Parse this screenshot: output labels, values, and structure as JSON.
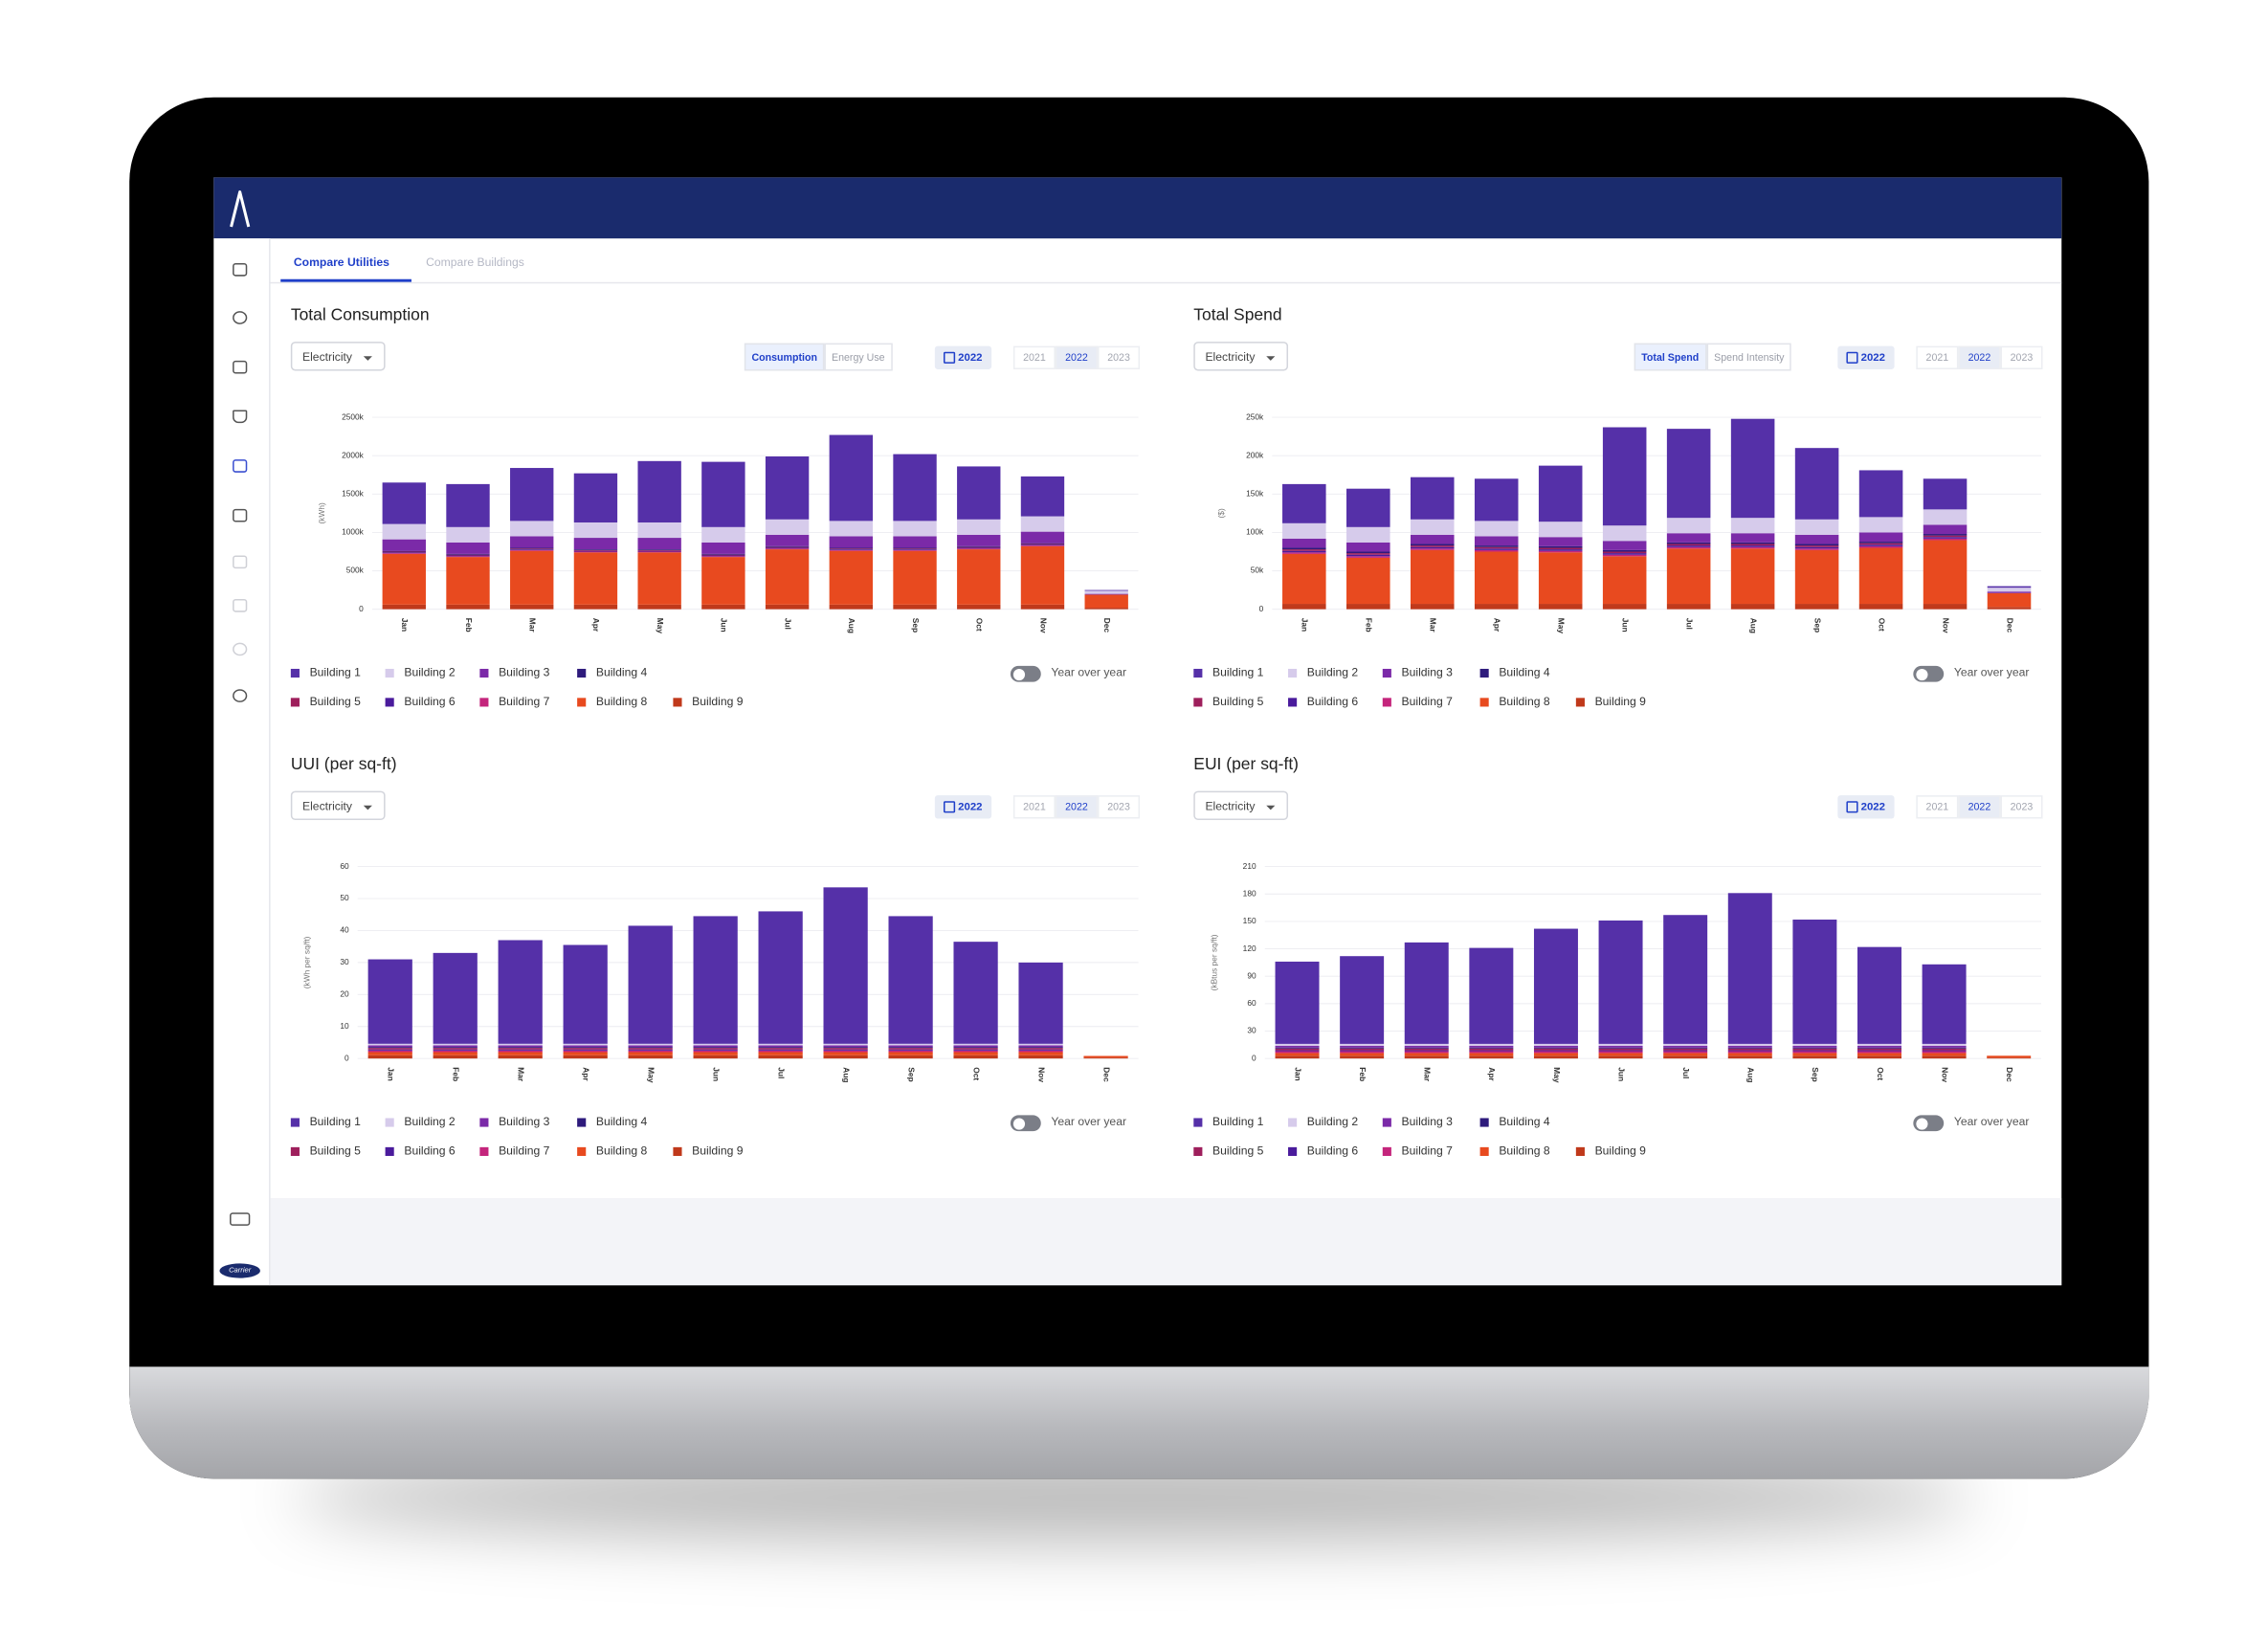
{
  "app": {
    "tabs": [
      "Compare Utilities",
      "Compare Buildings"
    ],
    "brand": "Carrier"
  },
  "panels": [
    {
      "dropdown": "Electricity",
      "toggle": [
        "Consumption",
        "Energy Use"
      ],
      "date_badge": "2022",
      "years": [
        "2021",
        "2022",
        "2023"
      ],
      "yoy": "Year over year"
    },
    {
      "dropdown": "Electricity",
      "toggle": [
        "Total Spend",
        "Spend Intensity"
      ],
      "date_badge": "2022",
      "years": [
        "2021",
        "2022",
        "2023"
      ],
      "yoy": "Year over year"
    },
    {
      "dropdown": "Electricity",
      "date_badge": "2022",
      "years": [
        "2021",
        "2022",
        "2023"
      ],
      "yoy": "Year over year"
    },
    {
      "dropdown": "Electricity",
      "date_badge": "2022",
      "years": [
        "2021",
        "2022",
        "2023"
      ],
      "yoy": "Year over year"
    }
  ],
  "chart_data": [
    {
      "type": "bar",
      "stacked": true,
      "title": "Total Consumption",
      "y_label": "(kWh)",
      "grid": true,
      "categories": [
        "Jan",
        "Feb",
        "Mar",
        "Apr",
        "May",
        "Jun",
        "Jul",
        "Aug",
        "Sep",
        "Oct",
        "Nov",
        "Dec"
      ],
      "ylim": [
        0,
        2500000
      ],
      "yticks": [
        0,
        {
          "value": 500000,
          "label": "500k"
        },
        {
          "value": 1000000,
          "label": "1000k"
        },
        {
          "value": 1500000,
          "label": "1500k"
        },
        {
          "value": 2000000,
          "label": "2000k"
        },
        {
          "value": 2500000,
          "label": "2500k"
        }
      ],
      "series": [
        {
          "name": "Building 1",
          "color": "#5530a8",
          "values": [
            540000,
            560000,
            690000,
            640000,
            800000,
            850000,
            820000,
            1120000,
            870000,
            690000,
            520000,
            10000
          ]
        },
        {
          "name": "Building 2",
          "color": "#d6cbeb",
          "values": [
            200000,
            200000,
            200000,
            200000,
            200000,
            200000,
            200000,
            200000,
            200000,
            200000,
            200000,
            40000
          ]
        },
        {
          "name": "Building 3",
          "color": "#7b2aa8",
          "values": [
            150000,
            150000,
            150000,
            150000,
            150000,
            150000,
            150000,
            150000,
            150000,
            150000,
            150000,
            10000
          ]
        },
        {
          "name": "Building 4",
          "color": "#2e1b7c",
          "values": [
            10000,
            10000,
            10000,
            10000,
            10000,
            10000,
            10000,
            10000,
            10000,
            10000,
            10000,
            0
          ]
        },
        {
          "name": "Building 5",
          "color": "#9e1f5c",
          "values": [
            10000,
            10000,
            10000,
            10000,
            10000,
            10000,
            10000,
            10000,
            10000,
            10000,
            10000,
            0
          ]
        },
        {
          "name": "Building 6",
          "color": "#4a1b9c",
          "values": [
            10000,
            10000,
            10000,
            10000,
            10000,
            10000,
            10000,
            10000,
            10000,
            10000,
            10000,
            0
          ]
        },
        {
          "name": "Building 7",
          "color": "#c4257c",
          "values": [
            10000,
            10000,
            10000,
            10000,
            10000,
            10000,
            10000,
            10000,
            10000,
            10000,
            10000,
            0
          ]
        },
        {
          "name": "Building 8",
          "color": "#e84a1f",
          "values": [
            660000,
            620000,
            700000,
            680000,
            680000,
            620000,
            720000,
            700000,
            700000,
            720000,
            760000,
            170000
          ]
        },
        {
          "name": "Building 9",
          "color": "#c0391b",
          "values": [
            60000,
            60000,
            60000,
            60000,
            60000,
            60000,
            60000,
            60000,
            60000,
            60000,
            60000,
            20000
          ]
        }
      ]
    },
    {
      "type": "bar",
      "stacked": true,
      "title": "Total Spend",
      "y_label": "($)",
      "grid": true,
      "categories": [
        "Jan",
        "Feb",
        "Mar",
        "Apr",
        "May",
        "Jun",
        "Jul",
        "Aug",
        "Sep",
        "Oct",
        "Nov",
        "Dec"
      ],
      "ylim": [
        0,
        250000
      ],
      "yticks": [
        0,
        {
          "value": 50000,
          "label": "50k"
        },
        {
          "value": 100000,
          "label": "100k"
        },
        {
          "value": 150000,
          "label": "150k"
        },
        {
          "value": 200000,
          "label": "200k"
        },
        {
          "value": 250000,
          "label": "250k"
        }
      ],
      "series": [
        {
          "name": "Building 1",
          "color": "#5530a8",
          "values": [
            51000,
            50000,
            55000,
            55000,
            73000,
            128000,
            116000,
            129000,
            93000,
            61000,
            40000,
            2000
          ]
        },
        {
          "name": "Building 2",
          "color": "#d6cbeb",
          "values": [
            20000,
            20000,
            20000,
            20000,
            20000,
            20000,
            20000,
            20000,
            20000,
            20000,
            20000,
            5000
          ]
        },
        {
          "name": "Building 3",
          "color": "#7b2aa8",
          "values": [
            12000,
            12000,
            12000,
            12000,
            12000,
            12000,
            12000,
            12000,
            12000,
            12000,
            12000,
            2000
          ]
        },
        {
          "name": "Building 4",
          "color": "#2e1b7c",
          "values": [
            2000,
            2000,
            2000,
            2000,
            2000,
            2000,
            2000,
            2000,
            2000,
            2000,
            2000,
            0
          ]
        },
        {
          "name": "Building 5",
          "color": "#9e1f5c",
          "values": [
            2000,
            2000,
            2000,
            2000,
            2000,
            2000,
            2000,
            2000,
            2000,
            2000,
            2000,
            0
          ]
        },
        {
          "name": "Building 6",
          "color": "#4a1b9c",
          "values": [
            2000,
            2000,
            2000,
            2000,
            2000,
            2000,
            2000,
            2000,
            2000,
            2000,
            2000,
            0
          ]
        },
        {
          "name": "Building 7",
          "color": "#c4257c",
          "values": [
            2000,
            2000,
            2000,
            2000,
            2000,
            2000,
            2000,
            2000,
            2000,
            2000,
            2000,
            0
          ]
        },
        {
          "name": "Building 8",
          "color": "#e84a1f",
          "values": [
            65000,
            60000,
            70000,
            68000,
            67000,
            62000,
            72000,
            72000,
            70000,
            73000,
            83000,
            18000
          ]
        },
        {
          "name": "Building 9",
          "color": "#c0391b",
          "values": [
            7000,
            7000,
            7000,
            7000,
            7000,
            7000,
            7000,
            7000,
            7000,
            7000,
            7000,
            3000
          ]
        }
      ]
    },
    {
      "type": "bar",
      "stacked": true,
      "title": "UUI (per sq-ft)",
      "y_label": "(kWh per sq/ft)",
      "grid": true,
      "categories": [
        "Jan",
        "Feb",
        "Mar",
        "Apr",
        "May",
        "Jun",
        "Jul",
        "Aug",
        "Sep",
        "Oct",
        "Nov",
        "Dec"
      ],
      "ylim": [
        0,
        60
      ],
      "yticks": [
        0,
        10,
        20,
        30,
        40,
        50,
        60
      ],
      "series": [
        {
          "name": "Building 1",
          "color": "#5530a8",
          "values": [
            26.4,
            28.4,
            32.4,
            30.9,
            36.9,
            39.9,
            41.4,
            48.9,
            39.9,
            31.9,
            25.4,
            0
          ]
        },
        {
          "name": "Building 2",
          "color": "#d6cbeb",
          "values": [
            0.5,
            0.5,
            0.5,
            0.5,
            0.5,
            0.5,
            0.5,
            0.5,
            0.5,
            0.5,
            0.5,
            0
          ]
        },
        {
          "name": "Building 3",
          "color": "#7b2aa8",
          "values": [
            0.5,
            0.5,
            0.5,
            0.5,
            0.5,
            0.5,
            0.5,
            0.5,
            0.5,
            0.5,
            0.5,
            0
          ]
        },
        {
          "name": "Building 4",
          "color": "#2e1b7c",
          "values": [
            0.3,
            0.3,
            0.3,
            0.3,
            0.3,
            0.3,
            0.3,
            0.3,
            0.3,
            0.3,
            0.3,
            0
          ]
        },
        {
          "name": "Building 5",
          "color": "#9e1f5c",
          "values": [
            0.5,
            0.5,
            0.5,
            0.5,
            0.5,
            0.5,
            0.5,
            0.5,
            0.5,
            0.5,
            0.5,
            0
          ]
        },
        {
          "name": "Building 6",
          "color": "#4a1b9c",
          "values": [
            0.3,
            0.3,
            0.3,
            0.3,
            0.3,
            0.3,
            0.3,
            0.3,
            0.3,
            0.3,
            0.3,
            0
          ]
        },
        {
          "name": "Building 7",
          "color": "#c4257c",
          "values": [
            0.5,
            0.5,
            0.5,
            0.5,
            0.5,
            0.5,
            0.5,
            0.5,
            0.5,
            0.5,
            0.5,
            0
          ]
        },
        {
          "name": "Building 8",
          "color": "#e84a1f",
          "values": [
            1,
            1,
            1,
            1,
            1,
            1,
            1,
            1,
            1,
            1,
            1,
            0.5
          ]
        },
        {
          "name": "Building 9",
          "color": "#c0391b",
          "values": [
            1,
            1,
            1,
            1,
            1,
            1,
            1,
            1,
            1,
            1,
            1,
            0.3
          ]
        }
      ]
    },
    {
      "type": "bar",
      "stacked": true,
      "title": "EUI (per sq-ft)",
      "y_label": "(kBtus per sq/ft)",
      "grid": true,
      "categories": [
        "Jan",
        "Feb",
        "Mar",
        "Apr",
        "May",
        "Jun",
        "Jul",
        "Aug",
        "Sep",
        "Oct",
        "Nov",
        "Dec"
      ],
      "ylim": [
        0,
        210
      ],
      "yticks": [
        0,
        30,
        60,
        90,
        120,
        150,
        180,
        210
      ],
      "series": [
        {
          "name": "Building 1",
          "color": "#5530a8",
          "values": [
            90,
            96,
            111,
            105,
            126,
            135,
            141,
            165,
            136,
            106,
            87,
            0
          ]
        },
        {
          "name": "Building 2",
          "color": "#d6cbeb",
          "values": [
            2,
            2,
            2,
            2,
            2,
            2,
            2,
            2,
            2,
            2,
            2,
            0
          ]
        },
        {
          "name": "Building 3",
          "color": "#7b2aa8",
          "values": [
            2,
            2,
            2,
            2,
            2,
            2,
            2,
            2,
            2,
            2,
            2,
            0
          ]
        },
        {
          "name": "Building 4",
          "color": "#2e1b7c",
          "values": [
            1,
            1,
            1,
            1,
            1,
            1,
            1,
            1,
            1,
            1,
            1,
            0
          ]
        },
        {
          "name": "Building 5",
          "color": "#9e1f5c",
          "values": [
            2,
            2,
            2,
            2,
            2,
            2,
            2,
            2,
            2,
            2,
            2,
            0
          ]
        },
        {
          "name": "Building 6",
          "color": "#4a1b9c",
          "values": [
            1,
            1,
            1,
            1,
            1,
            1,
            1,
            1,
            1,
            1,
            1,
            0
          ]
        },
        {
          "name": "Building 7",
          "color": "#c4257c",
          "values": [
            2,
            2,
            2,
            2,
            2,
            2,
            2,
            2,
            2,
            2,
            2,
            0
          ]
        },
        {
          "name": "Building 8",
          "color": "#e84a1f",
          "values": [
            3,
            3,
            3,
            3,
            3,
            3,
            3,
            3,
            3,
            3,
            3,
            2
          ]
        },
        {
          "name": "Building 9",
          "color": "#c0391b",
          "values": [
            3,
            3,
            3,
            3,
            3,
            3,
            3,
            3,
            3,
            3,
            3,
            1
          ]
        }
      ]
    }
  ]
}
